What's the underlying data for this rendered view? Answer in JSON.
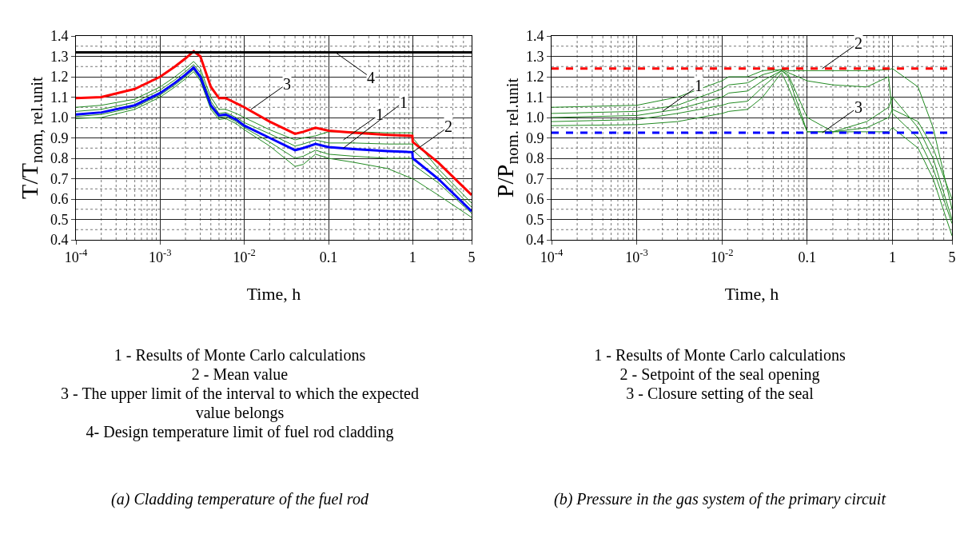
{
  "chart_data": [
    {
      "type": "line",
      "title": "(a) Cladding temperature of the fuel rod",
      "xlabel": "Time, h",
      "ylabel": "T/T$_{nom, rel.unit}$",
      "log": "x",
      "grid": true,
      "marker": "none",
      "line_style": "solid",
      "xlim": [
        0.0001,
        5
      ],
      "xticks": [
        {
          "value": 0.0001,
          "label": "10$^{-4}$"
        },
        {
          "value": 0.001,
          "label": "10$^{-3}$"
        },
        {
          "value": 0.01,
          "label": "10$^{-2}$"
        },
        0.1,
        1,
        5
      ],
      "ylim": [
        0.4,
        1.4
      ],
      "yticks": [
        0.4,
        0.5,
        0.6,
        0.7,
        0.8,
        0.9,
        {
          "value": 1.0,
          "label": "1.0"
        },
        1.1,
        1.2,
        1.3,
        1.4
      ],
      "x": [
        0.0001,
        0.0002,
        0.0005,
        0.001,
        0.0015,
        0.002,
        0.0025,
        0.003,
        0.004,
        0.005,
        0.006,
        0.008,
        0.01,
        0.02,
        0.04,
        0.05,
        0.07,
        0.1,
        0.2,
        0.5,
        0.99,
        1.0,
        2,
        5
      ],
      "series": [
        {
          "color": "#228b22",
          "values": [
            1.05,
            1.06,
            1.09,
            1.15,
            1.2,
            1.24,
            1.275,
            1.24,
            1.1,
            1.04,
            1.04,
            1.02,
            1.0,
            0.94,
            0.89,
            0.9,
            0.91,
            0.93,
            0.93,
            0.925,
            0.925,
            0.9,
            0.75,
            0.58
          ]
        },
        {
          "color": "#228b22",
          "values": [
            1.03,
            1.04,
            1.075,
            1.135,
            1.185,
            1.225,
            1.26,
            1.22,
            1.08,
            1.02,
            1.025,
            1.0,
            0.975,
            0.92,
            0.86,
            0.87,
            0.89,
            0.875,
            0.875,
            0.87,
            0.87,
            0.84,
            0.73,
            0.56
          ]
        },
        {
          "color": "#228b22",
          "values": [
            1.005,
            1.015,
            1.05,
            1.11,
            1.16,
            1.2,
            1.235,
            1.19,
            1.05,
            1.0,
            1.005,
            0.98,
            0.95,
            0.88,
            0.8,
            0.81,
            0.84,
            0.82,
            0.81,
            0.8,
            0.8,
            0.77,
            0.68,
            0.53
          ]
        },
        {
          "color": "#228b22",
          "values": [
            0.995,
            1.0,
            1.04,
            1.1,
            1.15,
            1.19,
            1.225,
            1.18,
            1.04,
            0.99,
            0.995,
            0.97,
            0.94,
            0.86,
            0.76,
            0.77,
            0.82,
            0.8,
            0.78,
            0.75,
            0.7,
            0.7,
            0.62,
            0.51
          ]
        },
        {
          "color": "#0000ff",
          "values": [
            1.015,
            1.025,
            1.06,
            1.12,
            1.17,
            1.21,
            1.245,
            1.2,
            1.06,
            1.01,
            1.015,
            0.99,
            0.96,
            0.9,
            0.84,
            0.85,
            0.87,
            0.855,
            0.845,
            0.835,
            0.83,
            0.8,
            0.7,
            0.54
          ]
        },
        {
          "color": "#ff0000",
          "values": [
            1.095,
            1.1,
            1.14,
            1.2,
            1.25,
            1.29,
            1.325,
            1.3,
            1.15,
            1.095,
            1.095,
            1.07,
            1.05,
            0.98,
            0.92,
            0.93,
            0.95,
            0.935,
            0.925,
            0.915,
            0.91,
            0.88,
            0.78,
            0.62
          ]
        }
      ],
      "ref_lines": [
        {
          "axis": "y",
          "value": 1.32,
          "color": "#000000",
          "line_style": "solid"
        }
      ],
      "annotations": [
        {
          "text": "4",
          "x": 0.12,
          "y": 1.32
        },
        {
          "text": "3",
          "x": 0.012,
          "y": 1.04
        },
        {
          "text": "1",
          "x": 0.15,
          "y": 0.89
        },
        {
          "text": "1",
          "x": 0.15,
          "y": 0.85
        },
        {
          "text": "2",
          "x": 1.0,
          "y": 0.83
        },
        "1 - Results of Monte Carlo calculations",
        "2 - Mean value",
        "3 - The upper limit of the interval to which the expected value belongs",
        "4- Design temperature limit of fuel rod cladding"
      ]
    },
    {
      "type": "line",
      "title": "(b) Pressure in the gas system of the primary circuit",
      "xlabel": "Time, h",
      "ylabel": "P/P$_{nom. rel.unit}$",
      "log": "x",
      "grid": true,
      "marker": "none",
      "line_style": "solid",
      "xlim": [
        0.0001,
        5
      ],
      "xticks": [
        {
          "value": 0.0001,
          "label": "10$^{-4}$"
        },
        {
          "value": 0.001,
          "label": "10$^{-3}$"
        },
        {
          "value": 0.01,
          "label": "10$^{-2}$"
        },
        0.1,
        1,
        5
      ],
      "ylim": [
        0.4,
        1.4
      ],
      "yticks": [
        0.4,
        0.5,
        0.6,
        0.7,
        0.8,
        0.9,
        {
          "value": 1.0,
          "label": "1.0"
        },
        1.1,
        1.2,
        1.3,
        1.4
      ],
      "x": [
        0.0001,
        0.001,
        0.003,
        0.01,
        0.012,
        0.02,
        0.03,
        0.05,
        0.06,
        0.1,
        0.2,
        0.5,
        0.9,
        1,
        2,
        3,
        5
      ],
      "series": [
        {
          "color": "#228b22",
          "values": [
            1.05,
            1.06,
            1.1,
            1.18,
            1.2,
            1.2,
            1.23,
            1.235,
            1.23,
            1.23,
            1.23,
            1.23,
            1.235,
            1.24,
            1.15,
            0.95,
            0.55
          ]
        },
        {
          "color": "#228b22",
          "values": [
            1.0,
            1.01,
            1.04,
            1.1,
            1.12,
            1.13,
            1.18,
            1.23,
            1.2,
            0.93,
            0.93,
            0.98,
            1.05,
            1.1,
            0.95,
            0.8,
            0.5
          ]
        },
        {
          "color": "#228b22",
          "values": [
            0.96,
            0.965,
            0.98,
            1.02,
            1.03,
            1.04,
            1.1,
            1.22,
            1.15,
            0.93,
            0.93,
            0.93,
            0.93,
            0.95,
            0.85,
            0.7,
            0.42
          ]
        },
        {
          "color": "#228b22",
          "values": [
            1.02,
            1.03,
            1.06,
            1.14,
            1.16,
            1.17,
            1.21,
            1.235,
            1.22,
            1.18,
            1.16,
            1.15,
            1.2,
            1.02,
            0.9,
            0.75,
            0.48
          ]
        },
        {
          "color": "#228b22",
          "values": [
            0.98,
            0.99,
            1.02,
            1.06,
            1.07,
            1.08,
            1.15,
            1.23,
            1.21,
            1.0,
            0.93,
            0.95,
            1.0,
            1.04,
            0.98,
            0.85,
            0.6
          ]
        }
      ],
      "ref_lines": [
        {
          "axis": "y",
          "value": 1.24,
          "color": "#ff0000",
          "line_style": "dashed"
        },
        {
          "axis": "y",
          "value": 0.925,
          "color": "#0000ff",
          "line_style": "dashed"
        }
      ],
      "annotations": [
        {
          "text": "1",
          "x": 0.002,
          "y": 1.03
        },
        {
          "text": "2",
          "x": 0.15,
          "y": 1.24
        },
        {
          "text": "3",
          "x": 0.15,
          "y": 0.925
        },
        "1 - Results of Monte Carlo calculations",
        "2 - Setpoint of the seal opening",
        "3 - Closure setting of the seal"
      ]
    }
  ]
}
